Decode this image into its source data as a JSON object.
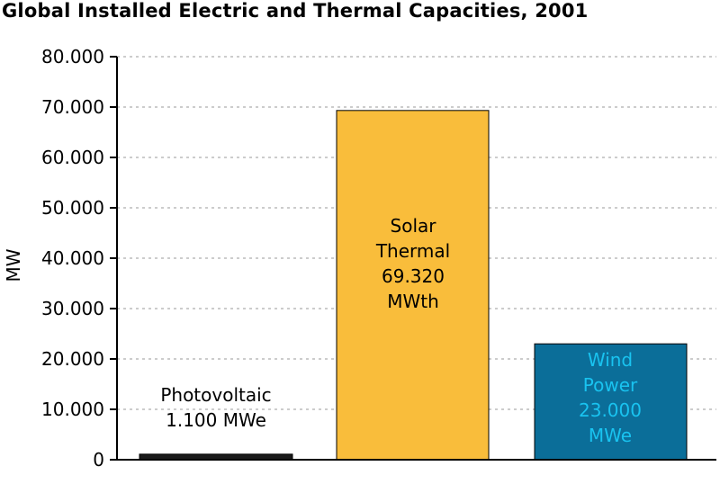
{
  "chart_data": {
    "type": "bar",
    "title": "Global Installed Electric and Thermal Capacities, 2001",
    "ylabel": "MW",
    "ylim": [
      0,
      80000
    ],
    "yticks": [
      "0",
      "10.000",
      "20.000",
      "30.000",
      "40.000",
      "50.000",
      "60.000",
      "70.000",
      "80.000"
    ],
    "yticks_values": [
      0,
      10000,
      20000,
      30000,
      40000,
      50000,
      60000,
      70000,
      80000
    ],
    "grid": true,
    "categories": [
      "Photovoltaic",
      "Solar Thermal",
      "Wind Power"
    ],
    "values": [
      1100,
      69320,
      23000
    ],
    "bar_labels": [
      [
        "Photovoltaic",
        "1.100 MWe"
      ],
      [
        "Solar",
        "Thermal",
        "69.320",
        "MWth"
      ],
      [
        "Wind",
        "Power",
        "23.000",
        "MWe"
      ]
    ],
    "colors": [
      "#1a1a1a",
      "#f9bd3b",
      "#0b6e99"
    ],
    "label_colors": [
      "#000000",
      "#000000",
      "#19c3f0"
    ]
  }
}
